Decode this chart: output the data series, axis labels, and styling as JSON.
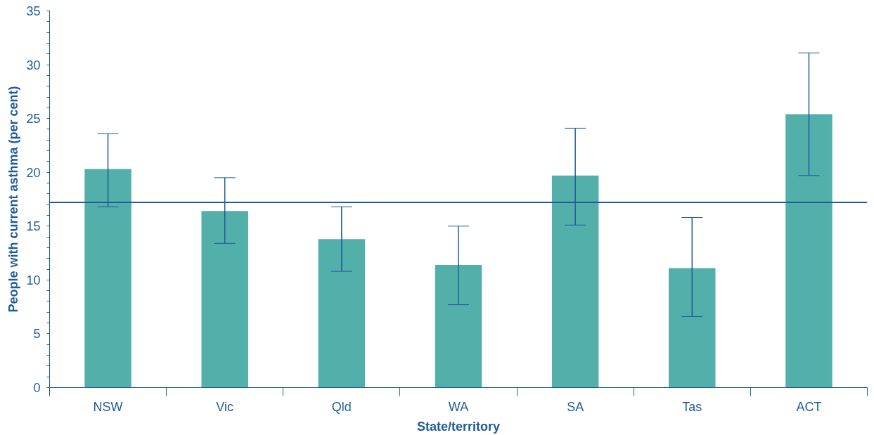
{
  "chart_data": {
    "type": "bar",
    "xlabel": "State/territory",
    "ylabel": "People with current asthma (per cent)",
    "categories": [
      "NSW",
      "Vic",
      "Qld",
      "WA",
      "SA",
      "Tas",
      "ACT"
    ],
    "values": [
      20.3,
      16.4,
      13.8,
      11.4,
      19.7,
      11.1,
      25.4
    ],
    "errors": [
      [
        16.8,
        23.6
      ],
      [
        13.4,
        19.5
      ],
      [
        10.8,
        16.8
      ],
      [
        7.7,
        15.0
      ],
      [
        15.1,
        24.1
      ],
      [
        6.6,
        15.8
      ],
      [
        19.7,
        31.1
      ]
    ],
    "color": "#52afa9",
    "ylim": [
      0,
      35
    ],
    "yticks": [
      0,
      5,
      10,
      15,
      20,
      25,
      30,
      35
    ],
    "ref_lines": [
      {
        "axis": "y",
        "value": 17.2,
        "color": "#1f5c99"
      }
    ],
    "grid": false
  }
}
